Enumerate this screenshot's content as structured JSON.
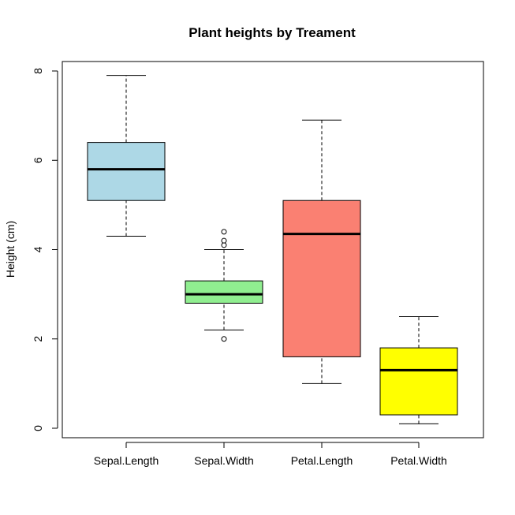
{
  "chart_data": {
    "type": "boxplot",
    "title": "Plant heights by Treament",
    "xlabel": "",
    "ylabel": "Height (cm)",
    "ylim": [
      0,
      8
    ],
    "yticks": [
      0,
      2,
      4,
      6,
      8
    ],
    "grid": false,
    "series": [
      {
        "name": "Sepal.Length",
        "color": "#ADD8E6",
        "min": 4.3,
        "q1": 5.1,
        "median": 5.8,
        "q3": 6.4,
        "max": 7.9,
        "outliers": []
      },
      {
        "name": "Sepal.Width",
        "color": "#90EE90",
        "min": 2.2,
        "q1": 2.8,
        "median": 3.0,
        "q3": 3.3,
        "max": 4.0,
        "outliers": [
          2.0,
          4.1,
          4.2,
          4.4
        ]
      },
      {
        "name": "Petal.Length",
        "color": "#FA8072",
        "min": 1.0,
        "q1": 1.6,
        "median": 4.35,
        "q3": 5.1,
        "max": 6.9,
        "outliers": []
      },
      {
        "name": "Petal.Width",
        "color": "#FFFF00",
        "min": 0.1,
        "q1": 0.3,
        "median": 1.3,
        "q3": 1.8,
        "max": 2.5,
        "outliers": []
      }
    ]
  }
}
